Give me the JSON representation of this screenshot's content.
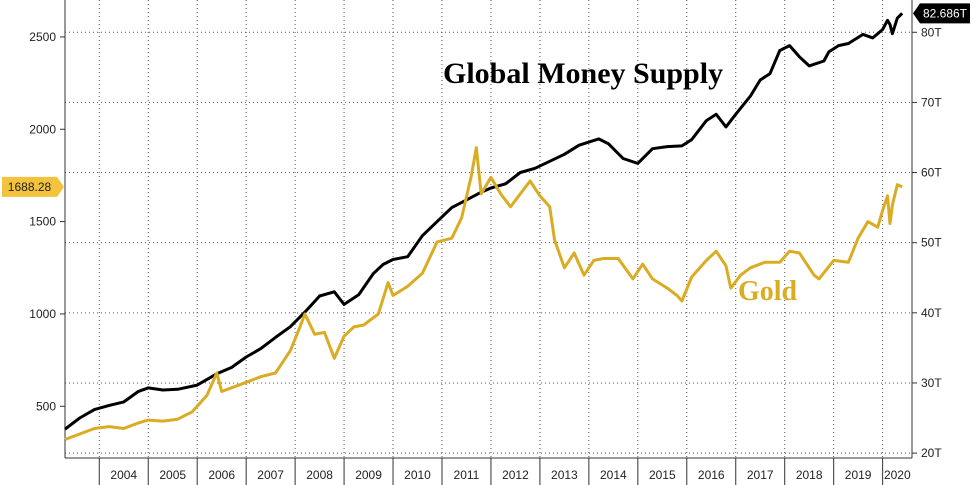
{
  "chart_data": {
    "type": "line",
    "title": "",
    "x_range": [
      2003.3,
      2020.6
    ],
    "x_ticks": [
      "2004",
      "2005",
      "2006",
      "2007",
      "2008",
      "2009",
      "2010",
      "2011",
      "2012",
      "2013",
      "2014",
      "2015",
      "2016",
      "2017",
      "2018",
      "2019",
      "2020"
    ],
    "y_left": {
      "range": [
        220,
        2700
      ],
      "ticks": [
        500,
        1000,
        1500,
        2000,
        2500
      ]
    },
    "y_right": {
      "range": [
        19.3,
        84.6
      ],
      "ticks": [
        "20T",
        "30T",
        "40T",
        "50T",
        "60T",
        "70T",
        "80T"
      ],
      "tick_values": [
        20,
        30,
        40,
        50,
        60,
        70,
        80
      ]
    },
    "grid": true,
    "series": [
      {
        "name": "Global Money Supply",
        "axis": "right",
        "color": "#000000",
        "last_value_label": "82.686T",
        "points": [
          [
            2003.3,
            23.4
          ],
          [
            2003.6,
            25.0
          ],
          [
            2003.9,
            26.2
          ],
          [
            2004.2,
            26.8
          ],
          [
            2004.5,
            27.3
          ],
          [
            2004.8,
            28.8
          ],
          [
            2005.0,
            29.3
          ],
          [
            2005.3,
            29.0
          ],
          [
            2005.6,
            29.1
          ],
          [
            2006.0,
            29.7
          ],
          [
            2006.4,
            31.3
          ],
          [
            2006.7,
            32.2
          ],
          [
            2007.0,
            33.7
          ],
          [
            2007.3,
            34.9
          ],
          [
            2007.6,
            36.5
          ],
          [
            2007.9,
            38.0
          ],
          [
            2008.2,
            40.1
          ],
          [
            2008.5,
            42.4
          ],
          [
            2008.8,
            43.0
          ],
          [
            2009.0,
            41.2
          ],
          [
            2009.3,
            42.6
          ],
          [
            2009.6,
            45.6
          ],
          [
            2009.8,
            46.9
          ],
          [
            2010.0,
            47.6
          ],
          [
            2010.3,
            48.0
          ],
          [
            2010.6,
            51.0
          ],
          [
            2010.9,
            53.0
          ],
          [
            2011.2,
            55.0
          ],
          [
            2011.5,
            56.1
          ],
          [
            2011.8,
            57.2
          ],
          [
            2012.0,
            57.8
          ],
          [
            2012.3,
            58.4
          ],
          [
            2012.6,
            60.0
          ],
          [
            2012.9,
            60.6
          ],
          [
            2013.2,
            61.6
          ],
          [
            2013.5,
            62.6
          ],
          [
            2013.8,
            63.9
          ],
          [
            2014.2,
            64.8
          ],
          [
            2014.4,
            64.1
          ],
          [
            2014.7,
            62.0
          ],
          [
            2015.0,
            61.3
          ],
          [
            2015.3,
            63.4
          ],
          [
            2015.6,
            63.7
          ],
          [
            2015.9,
            63.8
          ],
          [
            2016.1,
            64.7
          ],
          [
            2016.4,
            67.4
          ],
          [
            2016.6,
            68.3
          ],
          [
            2016.8,
            66.5
          ],
          [
            2017.0,
            68.3
          ],
          [
            2017.3,
            70.9
          ],
          [
            2017.5,
            73.2
          ],
          [
            2017.7,
            74.1
          ],
          [
            2017.9,
            77.4
          ],
          [
            2018.1,
            78.1
          ],
          [
            2018.3,
            76.5
          ],
          [
            2018.5,
            75.2
          ],
          [
            2018.8,
            75.9
          ],
          [
            2018.9,
            77.2
          ],
          [
            2019.1,
            78.1
          ],
          [
            2019.3,
            78.4
          ],
          [
            2019.6,
            79.7
          ],
          [
            2019.8,
            79.2
          ],
          [
            2020.0,
            80.4
          ],
          [
            2020.1,
            81.7
          ],
          [
            2020.15,
            81.1
          ],
          [
            2020.2,
            79.8
          ],
          [
            2020.3,
            82.0
          ],
          [
            2020.4,
            82.7
          ]
        ]
      },
      {
        "name": "Gold",
        "axis": "left",
        "color": "#d9ac23",
        "last_value_label": "1688.28",
        "points": [
          [
            2003.3,
            320
          ],
          [
            2003.6,
            350
          ],
          [
            2003.9,
            380
          ],
          [
            2004.2,
            390
          ],
          [
            2004.5,
            380
          ],
          [
            2004.8,
            410
          ],
          [
            2005.0,
            425
          ],
          [
            2005.3,
            420
          ],
          [
            2005.6,
            430
          ],
          [
            2005.9,
            470
          ],
          [
            2006.2,
            560
          ],
          [
            2006.4,
            680
          ],
          [
            2006.5,
            580
          ],
          [
            2006.7,
            600
          ],
          [
            2007.0,
            630
          ],
          [
            2007.3,
            660
          ],
          [
            2007.6,
            680
          ],
          [
            2007.9,
            800
          ],
          [
            2008.1,
            930
          ],
          [
            2008.2,
            1000
          ],
          [
            2008.4,
            890
          ],
          [
            2008.6,
            900
          ],
          [
            2008.8,
            760
          ],
          [
            2009.0,
            880
          ],
          [
            2009.2,
            930
          ],
          [
            2009.4,
            940
          ],
          [
            2009.7,
            1000
          ],
          [
            2009.9,
            1170
          ],
          [
            2010.0,
            1100
          ],
          [
            2010.3,
            1150
          ],
          [
            2010.6,
            1220
          ],
          [
            2010.9,
            1390
          ],
          [
            2011.2,
            1410
          ],
          [
            2011.4,
            1520
          ],
          [
            2011.6,
            1750
          ],
          [
            2011.7,
            1900
          ],
          [
            2011.8,
            1650
          ],
          [
            2012.0,
            1740
          ],
          [
            2012.2,
            1650
          ],
          [
            2012.4,
            1580
          ],
          [
            2012.6,
            1650
          ],
          [
            2012.8,
            1720
          ],
          [
            2013.0,
            1640
          ],
          [
            2013.2,
            1580
          ],
          [
            2013.3,
            1400
          ],
          [
            2013.5,
            1250
          ],
          [
            2013.7,
            1330
          ],
          [
            2013.9,
            1210
          ],
          [
            2014.1,
            1290
          ],
          [
            2014.3,
            1300
          ],
          [
            2014.6,
            1300
          ],
          [
            2014.9,
            1190
          ],
          [
            2015.1,
            1270
          ],
          [
            2015.3,
            1190
          ],
          [
            2015.6,
            1140
          ],
          [
            2015.8,
            1100
          ],
          [
            2015.9,
            1070
          ],
          [
            2016.1,
            1200
          ],
          [
            2016.4,
            1290
          ],
          [
            2016.6,
            1340
          ],
          [
            2016.8,
            1260
          ],
          [
            2016.9,
            1140
          ],
          [
            2017.1,
            1210
          ],
          [
            2017.3,
            1250
          ],
          [
            2017.6,
            1280
          ],
          [
            2017.9,
            1280
          ],
          [
            2018.1,
            1340
          ],
          [
            2018.3,
            1330
          ],
          [
            2018.6,
            1210
          ],
          [
            2018.7,
            1190
          ],
          [
            2019.0,
            1290
          ],
          [
            2019.3,
            1280
          ],
          [
            2019.5,
            1410
          ],
          [
            2019.7,
            1500
          ],
          [
            2019.9,
            1470
          ],
          [
            2020.0,
            1560
          ],
          [
            2020.1,
            1640
          ],
          [
            2020.15,
            1490
          ],
          [
            2020.2,
            1590
          ],
          [
            2020.3,
            1700
          ],
          [
            2020.4,
            1688
          ]
        ]
      }
    ],
    "annotations": [
      {
        "text": "Global Money Supply",
        "series": "Global Money Supply"
      },
      {
        "text": "Gold",
        "series": "Gold"
      }
    ]
  }
}
